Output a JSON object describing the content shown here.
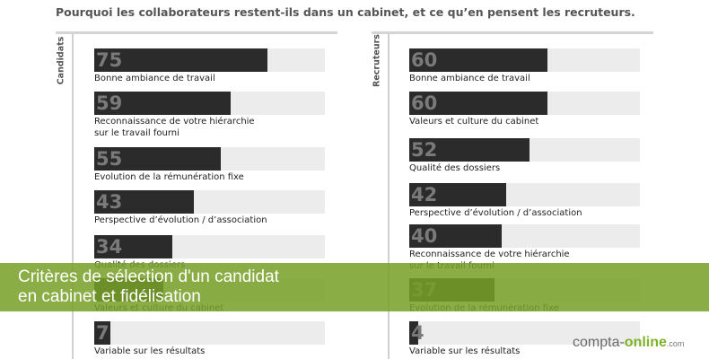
{
  "title": "Pourquoi les collaborateurs restent-ils dans un cabinet, et ce qu’en pensent les recruteurs.",
  "chart_data": [
    {
      "type": "bar",
      "orientation": "horizontal",
      "group_label": "Candidats",
      "categories": [
        "Bonne ambiance de travail",
        "Reconnaissance de votre hiérarchie\nsur le travail fourni",
        "Evolution de la rémunération fixe",
        "Perspective d’évolution / d’association",
        "Qualité des dossiers",
        "Valeurs et culture du cabinet",
        "Variable sur les résultats"
      ],
      "values": [
        75,
        59,
        55,
        43,
        34,
        30,
        7
      ],
      "value_labels": [
        "75",
        "59",
        "55",
        "43",
        "34",
        "",
        "7"
      ],
      "xlim": [
        0,
        100
      ]
    },
    {
      "type": "bar",
      "orientation": "horizontal",
      "group_label": "Recruteurs",
      "categories": [
        "Bonne ambiance de travail",
        "Valeurs et culture du cabinet",
        "Qualité des dossiers",
        "Perspective d’évolution / d’association",
        "Reconnaissance de votre hiérarchie\nsur le travail fourni",
        "Evolution de la rémunération fixe",
        "Variable sur les résultats"
      ],
      "values": [
        60,
        60,
        52,
        42,
        40,
        37,
        4
      ],
      "value_labels": [
        "60",
        "60",
        "52",
        "42",
        "40",
        "37",
        "4"
      ],
      "xlim": [
        0,
        100
      ]
    }
  ],
  "banner": {
    "text": "Critères de sélection d'un candidat\nen cabinet et fidélisation"
  },
  "logo": {
    "part1": "compta-",
    "part2": "online",
    "part3": ".com"
  }
}
